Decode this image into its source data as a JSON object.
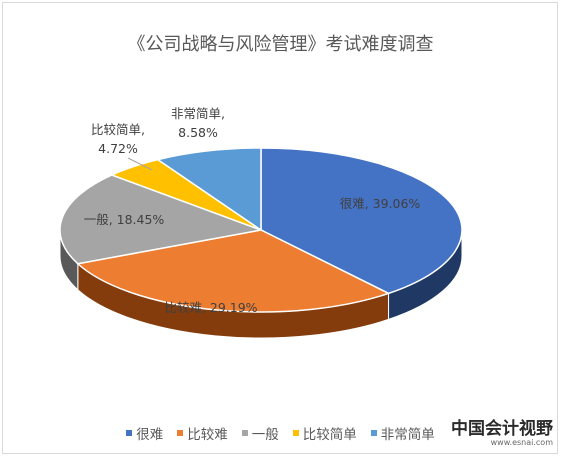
{
  "chart_data": {
    "type": "pie",
    "title": "《公司战略与风险管理》考试难度调查",
    "slices": [
      {
        "name": "很难",
        "value": 39.06,
        "label": "很难, 39.06%",
        "color": "#4472c4",
        "side_color": "#1f3864"
      },
      {
        "name": "比较难",
        "value": 29.19,
        "label": "比较难, 29.19%",
        "color": "#ed7d31",
        "side_color": "#843c0c"
      },
      {
        "name": "一般",
        "value": 18.45,
        "label": "一般, 18.45%",
        "color": "#a5a5a5",
        "side_color": "#595959"
      },
      {
        "name": "比较简单",
        "value": 4.72,
        "label_lines": [
          "比较简单,",
          "4.72%"
        ],
        "color": "#ffc000",
        "side_color": "#7f6000"
      },
      {
        "name": "非常简单",
        "value": 8.58,
        "label_lines": [
          "非常简单,",
          "8.58%"
        ],
        "color": "#5b9bd5",
        "side_color": "#1f4e79"
      }
    ],
    "legend_position": "bottom"
  },
  "watermark": {
    "text": "中国会计视野",
    "url": "www.esnai.com"
  }
}
